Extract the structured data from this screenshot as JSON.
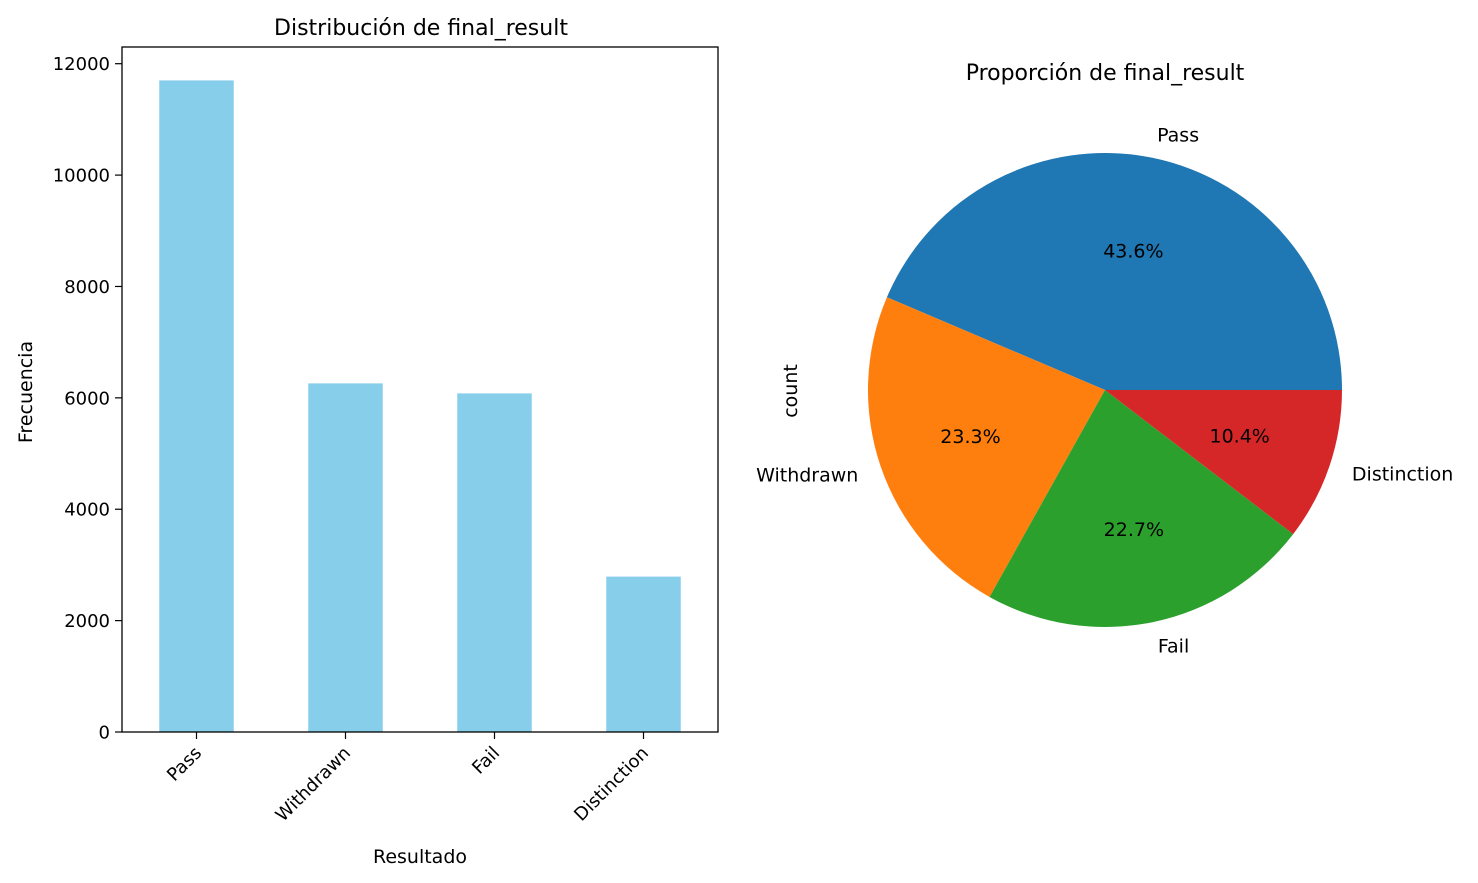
{
  "chart_data": [
    {
      "type": "bar",
      "title": "Distribución de final_result",
      "xlabel": "Resultado",
      "ylabel": "Frecuencia",
      "categories": [
        "Pass",
        "Withdrawn",
        "Fail",
        "Distinction"
      ],
      "values": [
        11700,
        6260,
        6080,
        2790
      ],
      "ylim": [
        0,
        12300
      ],
      "yticks": [
        0,
        2000,
        4000,
        6000,
        8000,
        10000,
        12000
      ],
      "bar_color": "#87ceeb",
      "grid": false
    },
    {
      "type": "pie",
      "title": "Proporción de final_result",
      "ylabel": "count",
      "labels": [
        "Pass",
        "Withdrawn",
        "Fail",
        "Distinction"
      ],
      "values": [
        43.6,
        23.3,
        22.7,
        10.4
      ],
      "pct_labels": [
        "43.6%",
        "23.3%",
        "22.7%",
        "10.4%"
      ],
      "colors": [
        "#1f77b4",
        "#ff7f0e",
        "#2ca02c",
        "#d62728"
      ]
    }
  ]
}
